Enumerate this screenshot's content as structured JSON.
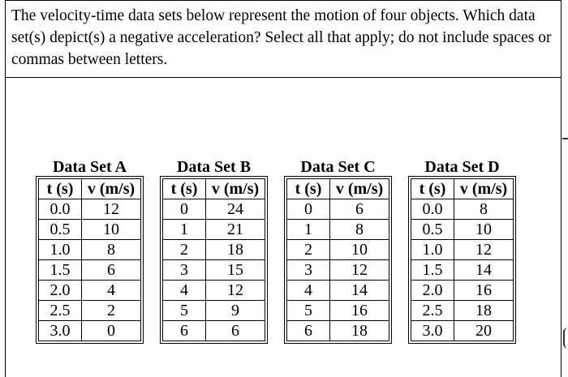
{
  "question": {
    "text": "The velocity-time data sets below represent the motion of four objects. Which data set(s) depict(s) a negative acceleration? Select all that apply; do not include spaces or commas between letters."
  },
  "datasets": [
    {
      "title": "Data Set A",
      "col_t": "t (s)",
      "col_v": "v (m/s)",
      "rows": [
        [
          "0.0",
          "12"
        ],
        [
          "0.5",
          "10"
        ],
        [
          "1.0",
          "8"
        ],
        [
          "1.5",
          "6"
        ],
        [
          "2.0",
          "4"
        ],
        [
          "2.5",
          "2"
        ],
        [
          "3.0",
          "0"
        ]
      ]
    },
    {
      "title": "Data Set B",
      "col_t": "t (s)",
      "col_v": "v (m/s)",
      "rows": [
        [
          "0",
          "24"
        ],
        [
          "1",
          "21"
        ],
        [
          "2",
          "18"
        ],
        [
          "3",
          "15"
        ],
        [
          "4",
          "12"
        ],
        [
          "5",
          "9"
        ],
        [
          "6",
          "6"
        ]
      ]
    },
    {
      "title": "Data Set C",
      "col_t": "t (s)",
      "col_v": "v (m/s)",
      "rows": [
        [
          "0",
          "6"
        ],
        [
          "1",
          "8"
        ],
        [
          "2",
          "10"
        ],
        [
          "3",
          "12"
        ],
        [
          "4",
          "14"
        ],
        [
          "5",
          "16"
        ],
        [
          "6",
          "18"
        ]
      ]
    },
    {
      "title": "Data Set D",
      "col_t": "t (s)",
      "col_v": "v (m/s)",
      "rows": [
        [
          "0.0",
          "8"
        ],
        [
          "0.5",
          "10"
        ],
        [
          "1.0",
          "12"
        ],
        [
          "1.5",
          "14"
        ],
        [
          "2.0",
          "16"
        ],
        [
          "2.5",
          "18"
        ],
        [
          "3.0",
          "20"
        ]
      ]
    }
  ]
}
